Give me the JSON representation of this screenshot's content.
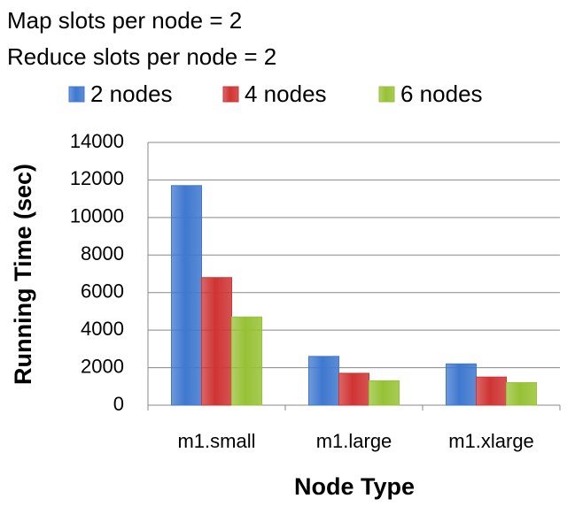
{
  "chart_data": {
    "type": "bar",
    "title": "Map slots per node = 2",
    "subtitle": "Reduce slots per node = 2",
    "x_label": "Node Type",
    "y_label": "Running Time (sec)",
    "categories": [
      "m1.small",
      "m1.large",
      "m1.xlarge"
    ],
    "series": [
      {
        "name": "2 nodes",
        "color": "#3f78cf",
        "values": [
          11700,
          2600,
          2200
        ]
      },
      {
        "name": "4 nodes",
        "color": "#cf3434",
        "values": [
          6800,
          1700,
          1500
        ]
      },
      {
        "name": "6 nodes",
        "color": "#97c235",
        "values": [
          4700,
          1300,
          1200
        ]
      }
    ],
    "ylim": [
      0,
      14000
    ],
    "yticks": [
      0,
      2000,
      4000,
      6000,
      8000,
      10000,
      12000,
      14000
    ],
    "grid": true
  }
}
